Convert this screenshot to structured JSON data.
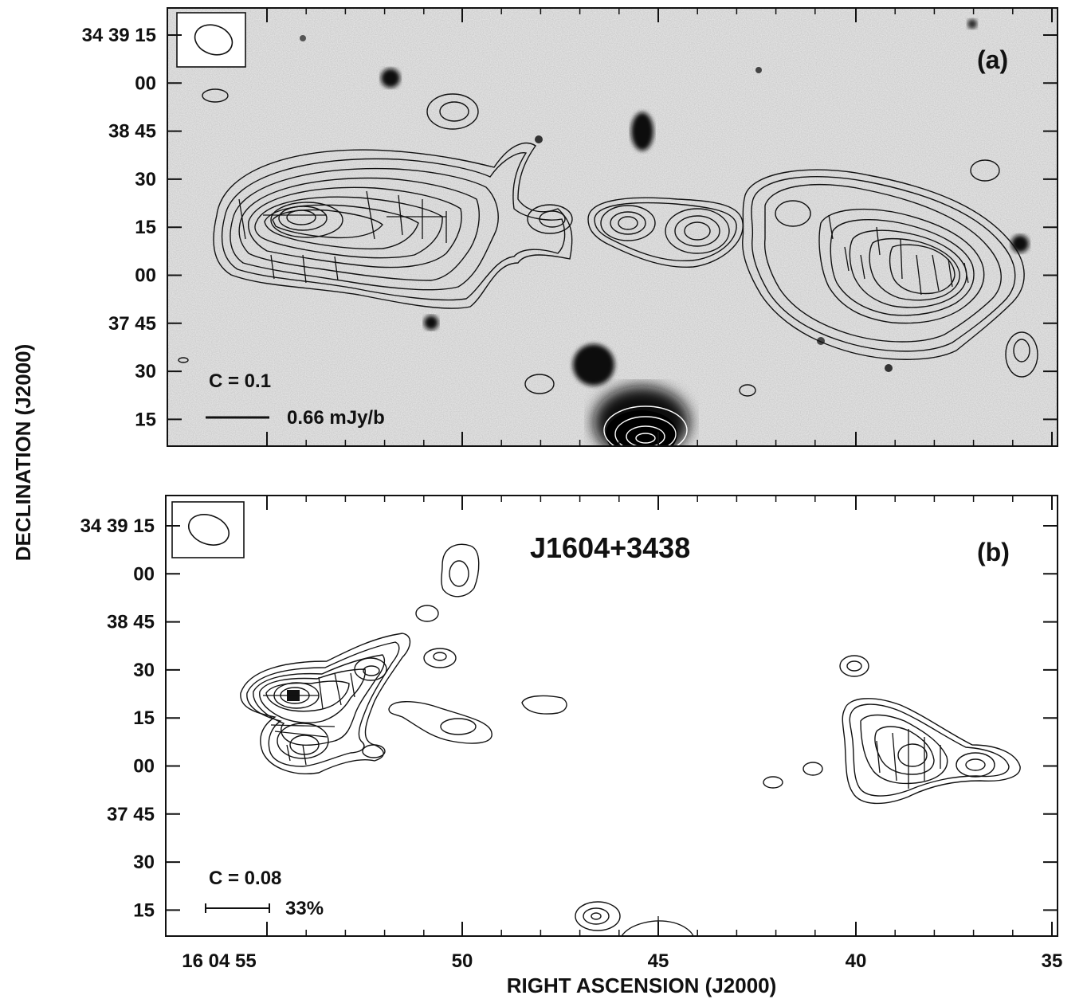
{
  "figure": {
    "source_name": "J1604+3438",
    "xlabel": "RIGHT ASCENSION (J2000)",
    "ylabel": "DECLINATION (J2000)",
    "x_tick_labels": [
      "16 04 55",
      "50",
      "45",
      "40",
      "35"
    ],
    "y_tick_labels": [
      "34 39 15",
      "00",
      "38 45",
      "30",
      "15",
      "00",
      "37 45",
      "30",
      "15"
    ],
    "panels": [
      {
        "tag": "(a)",
        "contour_label": "C  = 0.1",
        "vector_scale_label": "0.66 mJy/b",
        "background": "greyscale optical image"
      },
      {
        "tag": "(b)",
        "contour_label": "C  = 0.08",
        "vector_scale_label": "33%",
        "background": "white"
      }
    ]
  },
  "colors": {
    "ink": "#111111",
    "paper": "#ffffff"
  }
}
